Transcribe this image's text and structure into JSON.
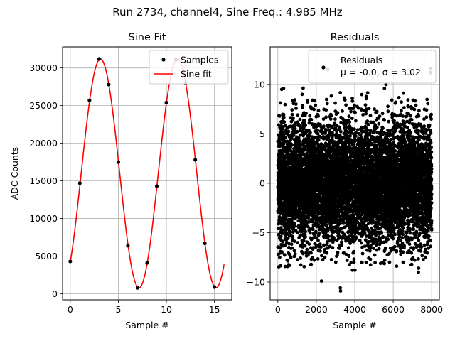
{
  "figure": {
    "suptitle": "Run 2734, channel4, Sine Freq.: 4.985 MHz"
  },
  "chart_data": [
    {
      "type": "line",
      "title": "Sine Fit",
      "xlabel": "Sample #",
      "ylabel": "ADC Counts",
      "xlim": [
        -0.8,
        16.8
      ],
      "ylim": [
        -800,
        32800
      ],
      "xticks": [
        0,
        5,
        10,
        15
      ],
      "yticks": [
        0,
        5000,
        10000,
        15000,
        20000,
        25000,
        30000
      ],
      "grid": true,
      "legend": {
        "placement": "upper-right",
        "entries": [
          "Samples",
          "Sine fit"
        ]
      },
      "samples": {
        "name": "Samples",
        "marker": "dot",
        "color": "#000000",
        "x": [
          0,
          1,
          2,
          3,
          4,
          5,
          6,
          7,
          8,
          9,
          10,
          11,
          12,
          13,
          14,
          15
        ],
        "y": [
          4300,
          14700,
          25700,
          31200,
          27800,
          17500,
          6400,
          800,
          4100,
          14300,
          25400,
          31100,
          28000,
          17800,
          6700,
          900
        ]
      },
      "fit": {
        "name": "Sine fit",
        "color": "#ff0000",
        "amplitude": 15200,
        "offset": 16000,
        "period_samples": 8.02,
        "phase_rad": -0.89,
        "x_range": [
          0,
          16
        ]
      }
    },
    {
      "type": "scatter",
      "title": "Residuals",
      "xlabel": "Sample #",
      "ylabel": "",
      "xlim": [
        -400,
        8400
      ],
      "ylim": [
        -11.8,
        13.8
      ],
      "xticks": [
        0,
        2000,
        4000,
        6000,
        8000
      ],
      "yticks": [
        -10,
        -5,
        0,
        5,
        10
      ],
      "grid": true,
      "legend": {
        "placement": "upper-right",
        "entries": [
          "Residuals",
          "μ = -0.0, σ = 3.02"
        ]
      },
      "series": {
        "name": "Residuals",
        "color": "#000000",
        "n_points": 8000,
        "mean": -0.0,
        "sigma": 3.02,
        "notable_points": [
          {
            "x": 3250,
            "y": -10.6
          },
          {
            "x": 3260,
            "y": -10.9
          },
          {
            "x": 2270,
            "y": -9.9
          },
          {
            "x": 3880,
            "y": -8.8
          },
          {
            "x": 4010,
            "y": -8.8
          },
          {
            "x": 7310,
            "y": -9.0
          },
          {
            "x": 7320,
            "y": -8.6
          },
          {
            "x": 3300,
            "y": 12.5
          },
          {
            "x": 2600,
            "y": 11.5
          },
          {
            "x": 7950,
            "y": 11.6
          },
          {
            "x": 7940,
            "y": 11.2
          },
          {
            "x": 200,
            "y": 9.5
          },
          {
            "x": 300,
            "y": 9.6
          }
        ]
      }
    }
  ]
}
